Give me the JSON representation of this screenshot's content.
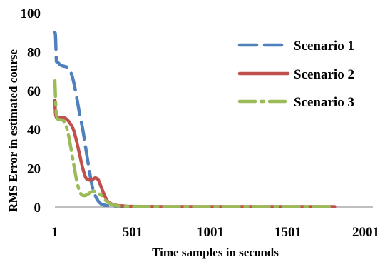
{
  "chart_data": {
    "type": "line",
    "title": "",
    "xlabel": "Time samples in seconds",
    "ylabel": "RMS Error in estimated course",
    "x_ticks": [
      1,
      501,
      1001,
      1501,
      2001
    ],
    "y_ticks": [
      0,
      20,
      40,
      60,
      80,
      100
    ],
    "xlim": [
      1,
      2001
    ],
    "ylim": [
      0,
      100
    ],
    "grid": false,
    "legend_position": "top-right",
    "series": [
      {
        "name": "Scenario 1",
        "color": "#4F81BD",
        "dash": "long-dash",
        "x": [
          1,
          5,
          10,
          15,
          40,
          80,
          100,
          120,
          140,
          160,
          180,
          200,
          220,
          240,
          260,
          280,
          300,
          320,
          350,
          400,
          500,
          700,
          1000,
          1500,
          1801
        ],
        "y": [
          90,
          88,
          76,
          75,
          73,
          72,
          70,
          65,
          57,
          48,
          40,
          30,
          20,
          11,
          6,
          3,
          1.5,
          1,
          0.5,
          0.3,
          0.2,
          0.1,
          0.1,
          0.1,
          0.1
        ]
      },
      {
        "name": "Scenario 2",
        "color": "#C0504D",
        "dash": "solid",
        "x": [
          1,
          5,
          12,
          20,
          40,
          60,
          80,
          100,
          120,
          140,
          160,
          180,
          200,
          220,
          240,
          260,
          280,
          300,
          320,
          340,
          360,
          380,
          400,
          450,
          500,
          700,
          1000,
          1500,
          1801
        ],
        "y": [
          55,
          48,
          46,
          46,
          46,
          46,
          45,
          43,
          40,
          34,
          27,
          20,
          15,
          14,
          14,
          15,
          14,
          10,
          6,
          3,
          1.8,
          1.2,
          0.8,
          0.5,
          0.3,
          0.2,
          0.2,
          0.2,
          0.2
        ]
      },
      {
        "name": "Scenario 3",
        "color": "#9BBB59",
        "dash": "long-dash-dot",
        "x": [
          1,
          4,
          8,
          15,
          25,
          40,
          60,
          80,
          100,
          120,
          140,
          160,
          180,
          200,
          220,
          240,
          260,
          280,
          300,
          320,
          340,
          360,
          380,
          400,
          450,
          500,
          700,
          1000,
          1500,
          1801
        ],
        "y": [
          65,
          58,
          50,
          46,
          45,
          45,
          44,
          40,
          32,
          23,
          14,
          8,
          6,
          6,
          7,
          8,
          8,
          7,
          6,
          4,
          2.5,
          1.5,
          1,
          0.6,
          0.4,
          0.3,
          0.2,
          0.2,
          0.2,
          0.2
        ]
      }
    ]
  }
}
